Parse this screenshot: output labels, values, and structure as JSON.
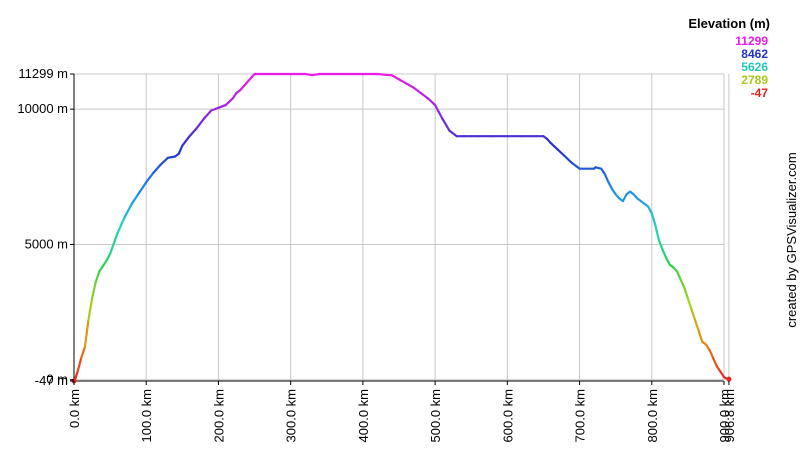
{
  "chart_data": {
    "type": "line",
    "title": "",
    "xlabel": "",
    "ylabel": "",
    "x_unit": "km",
    "y_unit": "m",
    "xlim": [
      0,
      900
    ],
    "ylim": [
      -47,
      11299
    ],
    "grid": true,
    "x_ticks": [
      "0.0 km",
      "100.0 km",
      "200.0 km",
      "300.0 km",
      "400.0 km",
      "500.0 km",
      "600.0 km",
      "700.0 km",
      "800.0 km",
      "900.0 km",
      "906.8 km"
    ],
    "y_ticks": [
      "11299 m",
      "10000 m",
      "5000 m",
      "0 m",
      "-47 m"
    ],
    "legend": {
      "title": "Elevation (m)",
      "position": "top-right",
      "entries": [
        {
          "label": "11299",
          "color": "#e81ee8"
        },
        {
          "label": "8462",
          "color": "#2233cc"
        },
        {
          "label": "5626",
          "color": "#22d4c4"
        },
        {
          "label": "2789",
          "color": "#a8d81e"
        },
        {
          "label": "-47",
          "color": "#e0221e"
        }
      ]
    },
    "series": [
      {
        "x": [
          0,
          2,
          5,
          10,
          15,
          20,
          25,
          30,
          35,
          40,
          45,
          50,
          60,
          70,
          80,
          90,
          100,
          110,
          120,
          130,
          140,
          145,
          150,
          160,
          170,
          180,
          190,
          200,
          205,
          210,
          220,
          225,
          230,
          240,
          250,
          260,
          280,
          300,
          320,
          330,
          340,
          360,
          380,
          400,
          420,
          440,
          450,
          460,
          470,
          480,
          490,
          500,
          505,
          510,
          520,
          530,
          540,
          550,
          560,
          580,
          600,
          620,
          640,
          650,
          655,
          660,
          670,
          680,
          690,
          700,
          710,
          720,
          722,
          730,
          735,
          740,
          745,
          750,
          755,
          760,
          765,
          770,
          775,
          780,
          785,
          790,
          795,
          800,
          805,
          810,
          815,
          820,
          825,
          830,
          835,
          840,
          845,
          850,
          855,
          860,
          865,
          870,
          875,
          880,
          885,
          890,
          895,
          900,
          903,
          906.8
        ],
        "y": [
          -47,
          50,
          300,
          800,
          1200,
          2200,
          3000,
          3600,
          4000,
          4200,
          4400,
          4650,
          5400,
          6000,
          6500,
          6900,
          7300,
          7650,
          7950,
          8200,
          8250,
          8350,
          8650,
          9000,
          9300,
          9650,
          9950,
          10050,
          10100,
          10150,
          10400,
          10600,
          10700,
          11000,
          11299,
          11299,
          11299,
          11299,
          11299,
          11260,
          11299,
          11299,
          11299,
          11299,
          11299,
          11250,
          11100,
          10950,
          10800,
          10600,
          10400,
          10150,
          9900,
          9650,
          9200,
          9000,
          9000,
          9000,
          9000,
          9000,
          9000,
          9000,
          9000,
          9000,
          8900,
          8750,
          8500,
          8250,
          8000,
          7800,
          7800,
          7800,
          7850,
          7800,
          7600,
          7300,
          7050,
          6850,
          6700,
          6600,
          6850,
          6950,
          6850,
          6700,
          6600,
          6500,
          6400,
          6150,
          5700,
          5150,
          4800,
          4500,
          4250,
          4150,
          4000,
          3700,
          3400,
          3000,
          2600,
          2200,
          1800,
          1400,
          1300,
          1100,
          800,
          500,
          300,
          100,
          50,
          20
        ]
      }
    ]
  },
  "credit": "created by GPSVisualizer.com"
}
